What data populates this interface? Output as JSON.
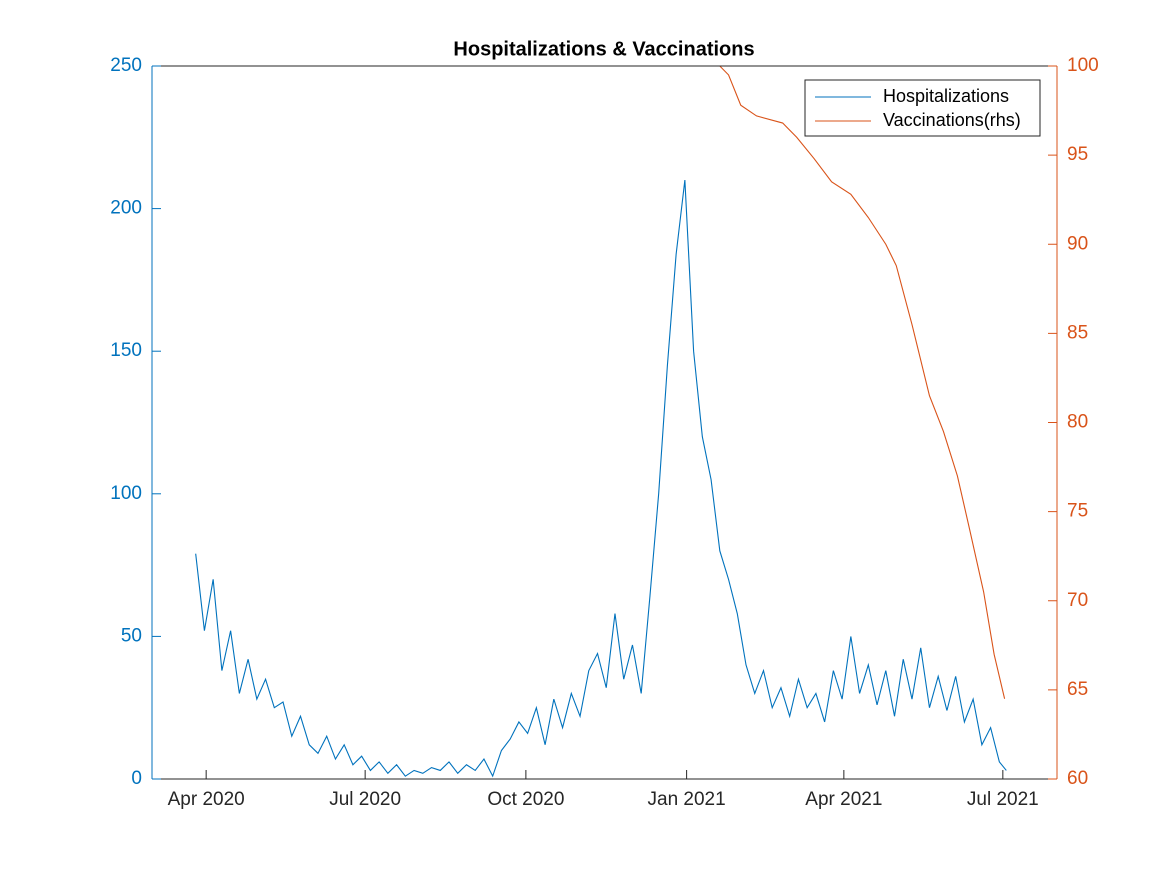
{
  "chart_data": {
    "type": "line",
    "title": "Hospitalizations & Vaccinations",
    "xlim": [
      "2020-03-01",
      "2021-08-01"
    ],
    "xticks": [
      {
        "value": "2020-04-01",
        "label": "Apr 2020"
      },
      {
        "value": "2020-07-01",
        "label": "Jul 2020"
      },
      {
        "value": "2020-10-01",
        "label": "Oct 2020"
      },
      {
        "value": "2021-01-01",
        "label": "Jan 2021"
      },
      {
        "value": "2021-04-01",
        "label": "Apr 2021"
      },
      {
        "value": "2021-07-01",
        "label": "Jul 2021"
      }
    ],
    "ylim": [
      0,
      250
    ],
    "yticks": [
      0,
      50,
      100,
      150,
      200,
      250
    ],
    "y2lim": [
      60,
      100
    ],
    "y2ticks": [
      60,
      65,
      70,
      75,
      80,
      85,
      90,
      95,
      100
    ],
    "legend": "northeast",
    "series": [
      {
        "name": "Hospitalizations",
        "color": "#0072bd",
        "x": [
          "2020-03-26",
          "2020-03-31",
          "2020-04-05",
          "2020-04-10",
          "2020-04-15",
          "2020-04-20",
          "2020-04-25",
          "2020-04-30",
          "2020-05-05",
          "2020-05-10",
          "2020-05-15",
          "2020-05-20",
          "2020-05-25",
          "2020-05-30",
          "2020-06-04",
          "2020-06-09",
          "2020-06-14",
          "2020-06-19",
          "2020-06-24",
          "2020-06-29",
          "2020-07-04",
          "2020-07-09",
          "2020-07-14",
          "2020-07-19",
          "2020-07-24",
          "2020-07-29",
          "2020-08-03",
          "2020-08-08",
          "2020-08-13",
          "2020-08-18",
          "2020-08-23",
          "2020-08-28",
          "2020-09-02",
          "2020-09-07",
          "2020-09-12",
          "2020-09-17",
          "2020-09-22",
          "2020-09-27",
          "2020-10-02",
          "2020-10-07",
          "2020-10-12",
          "2020-10-17",
          "2020-10-22",
          "2020-10-27",
          "2020-11-01",
          "2020-11-06",
          "2020-11-11",
          "2020-11-16",
          "2020-11-21",
          "2020-11-26",
          "2020-12-01",
          "2020-12-06",
          "2020-12-11",
          "2020-12-16",
          "2020-12-21",
          "2020-12-26",
          "2020-12-31",
          "2021-01-05",
          "2021-01-10",
          "2021-01-15",
          "2021-01-20",
          "2021-01-25",
          "2021-01-30",
          "2021-02-04",
          "2021-02-09",
          "2021-02-14",
          "2021-02-19",
          "2021-02-24",
          "2021-03-01",
          "2021-03-06",
          "2021-03-11",
          "2021-03-16",
          "2021-03-21",
          "2021-03-26",
          "2021-03-31",
          "2021-04-05",
          "2021-04-10",
          "2021-04-15",
          "2021-04-20",
          "2021-04-25",
          "2021-04-30",
          "2021-05-05",
          "2021-05-10",
          "2021-05-15",
          "2021-05-20",
          "2021-05-25",
          "2021-05-30",
          "2021-06-04",
          "2021-06-09",
          "2021-06-14",
          "2021-06-19",
          "2021-06-24",
          "2021-06-29",
          "2021-07-03"
        ],
        "values": [
          79,
          52,
          70,
          38,
          52,
          30,
          42,
          28,
          35,
          25,
          27,
          15,
          22,
          12,
          9,
          15,
          7,
          12,
          5,
          8,
          3,
          6,
          2,
          5,
          1,
          3,
          2,
          4,
          3,
          6,
          2,
          5,
          3,
          7,
          1,
          10,
          14,
          20,
          16,
          25,
          12,
          28,
          18,
          30,
          22,
          38,
          44,
          32,
          58,
          35,
          47,
          30,
          64,
          100,
          145,
          184,
          210,
          150,
          120,
          105,
          80,
          70,
          58,
          40,
          30,
          38,
          25,
          32,
          22,
          35,
          25,
          30,
          20,
          38,
          28,
          50,
          30,
          40,
          26,
          38,
          22,
          42,
          28,
          46,
          25,
          36,
          24,
          36,
          20,
          28,
          12,
          18,
          6,
          3
        ]
      },
      {
        "name": "Vaccinations(rhs)",
        "color": "#d95319",
        "axis": "y2",
        "x": [
          "2020-03-01",
          "2021-01-20",
          "2021-01-25",
          "2021-02-01",
          "2021-02-10",
          "2021-02-25",
          "2021-03-05",
          "2021-03-15",
          "2021-03-25",
          "2021-04-05",
          "2021-04-15",
          "2021-04-25",
          "2021-05-01",
          "2021-05-10",
          "2021-05-20",
          "2021-05-28",
          "2021-06-05",
          "2021-06-12",
          "2021-06-20",
          "2021-06-26",
          "2021-07-02"
        ],
        "values": [
          100,
          100,
          99.5,
          97.8,
          97.2,
          96.8,
          96,
          94.8,
          93.5,
          92.8,
          91.5,
          90,
          88.8,
          85.5,
          81.5,
          79.5,
          77,
          74,
          70.5,
          67,
          64.5
        ]
      }
    ]
  }
}
